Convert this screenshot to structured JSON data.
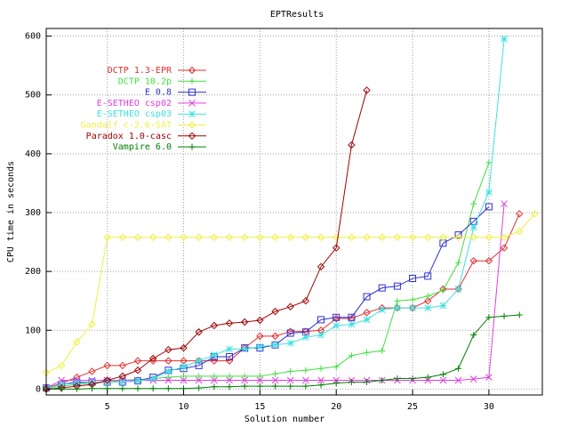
{
  "chart_data": {
    "type": "line",
    "title": "EPTResults",
    "x_label": "Solution number",
    "y_label": "CPU time in seconds",
    "x": [
      1,
      2,
      3,
      4,
      5,
      6,
      7,
      8,
      9,
      10,
      11,
      12,
      13,
      14,
      15,
      16,
      17,
      18,
      19,
      20,
      21,
      22,
      23,
      24,
      25,
      26,
      27,
      28,
      29,
      30,
      31,
      32,
      33
    ],
    "xlim": [
      1,
      33.5
    ],
    "ylim": [
      -10,
      613
    ],
    "xticks": [
      5,
      10,
      15,
      20,
      25,
      30
    ],
    "yticks": [
      0,
      100,
      200,
      300,
      400,
      500,
      600
    ],
    "grid": true,
    "legend": "top-left",
    "series": [
      {
        "name": "DCTP 1.3-EPR",
        "color": "#e03030",
        "marker": "diamond",
        "values": [
          2,
          10,
          20,
          30,
          40,
          40,
          48,
          48,
          48,
          48,
          48,
          48,
          48,
          70,
          90,
          90,
          98,
          98,
          100,
          120,
          120,
          130,
          138,
          138,
          138,
          150,
          170,
          170,
          218,
          218,
          240,
          298,
          null
        ]
      },
      {
        "name": "DCTP 10.2p",
        "color": "#40e040",
        "marker": "plus",
        "values": [
          2,
          5,
          8,
          10,
          12,
          15,
          16,
          18,
          20,
          22,
          22,
          22,
          22,
          22,
          22,
          26,
          30,
          32,
          35,
          38,
          57,
          62,
          65,
          150,
          152,
          158,
          168,
          215,
          315,
          385,
          null,
          null,
          null
        ]
      },
      {
        "name": "E 0.8",
        "color": "#3030d0",
        "marker": "square",
        "values": [
          2,
          8,
          12,
          12,
          12,
          12,
          14,
          20,
          32,
          35,
          40,
          55,
          55,
          70,
          70,
          75,
          95,
          97,
          118,
          122,
          122,
          157,
          172,
          175,
          188,
          192,
          248,
          262,
          285,
          310,
          null,
          null,
          null
        ]
      },
      {
        "name": "E-SETHEO csp02",
        "color": "#e040e0",
        "marker": "cross",
        "values": [
          2,
          15,
          15,
          15,
          15,
          15,
          15,
          15,
          15,
          15,
          15,
          15,
          15,
          15,
          15,
          15,
          15,
          15,
          15,
          15,
          15,
          15,
          15,
          15,
          15,
          15,
          15,
          15,
          17,
          20,
          315,
          null,
          null
        ]
      },
      {
        "name": "E-SETHEO csp03",
        "color": "#40e0e0",
        "marker": "star",
        "values": [
          2,
          8,
          10,
          12,
          12,
          12,
          14,
          18,
          30,
          38,
          48,
          58,
          68,
          68,
          72,
          75,
          78,
          88,
          92,
          108,
          110,
          118,
          135,
          138,
          138,
          138,
          142,
          170,
          275,
          335,
          595,
          null,
          null
        ]
      },
      {
        "name": "Gandalf c-2.6-SAT",
        "color": "#f0f040",
        "marker": "diamond",
        "values": [
          28,
          40,
          80,
          110,
          258,
          258,
          258,
          258,
          258,
          258,
          258,
          258,
          258,
          258,
          258,
          258,
          258,
          258,
          258,
          258,
          258,
          258,
          258,
          258,
          258,
          258,
          258,
          258,
          258,
          258,
          258,
          268,
          298
        ]
      },
      {
        "name": "Paradox 1.0-casc",
        "color": "#a00000",
        "marker": "diamond",
        "values": [
          0,
          2,
          5,
          8,
          15,
          22,
          32,
          52,
          67,
          70,
          97,
          108,
          112,
          114,
          117,
          132,
          140,
          150,
          208,
          240,
          415,
          508,
          null,
          null,
          null,
          null,
          null,
          null,
          null,
          null,
          null,
          null,
          null
        ]
      },
      {
        "name": "Vampire 6.0",
        "color": "#008000",
        "marker": "plus",
        "values": [
          0,
          0,
          0,
          1,
          1,
          1,
          1,
          1,
          1,
          1,
          2,
          4,
          4,
          5,
          5,
          5,
          5,
          5,
          7,
          10,
          12,
          12,
          15,
          18,
          18,
          20,
          25,
          35,
          92,
          122,
          124,
          126,
          null
        ]
      }
    ]
  }
}
